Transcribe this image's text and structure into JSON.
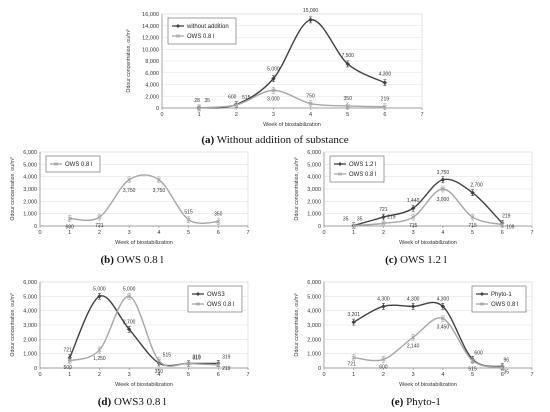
{
  "figure": {
    "captions": [
      {
        "tag": "(a)",
        "text": "Without addition of substance"
      },
      {
        "tag": "(b)",
        "text": "OWS 0.8 l"
      },
      {
        "tag": "(c)",
        "text": "OWS 1.2 l"
      },
      {
        "tag": "(d)",
        "text": "OWS3 0.8 l"
      },
      {
        "tag": "(e)",
        "text": "Phyto-1"
      }
    ]
  },
  "chart_data": [
    {
      "type": "line",
      "panel": "a",
      "xlabel": "Week of biostabilization",
      "ylabel": "Odour concentration, ou/m³",
      "xlim": [
        0,
        7
      ],
      "ylim": [
        0,
        16000
      ],
      "xticks": [
        "0",
        "1",
        "2",
        "3",
        "4",
        "5",
        "6",
        "7"
      ],
      "yticks": [
        "0",
        "2,000",
        "4,000",
        "6,000",
        "8,000",
        "10,000",
        "12,000",
        "14,000",
        "16,000"
      ],
      "legend_position": "top-left",
      "series": [
        {
          "name": "without addition",
          "color": "#404040",
          "marker": "diamond",
          "x": [
            1,
            2,
            3,
            4,
            5,
            6
          ],
          "y": [
            28,
            600,
            5000,
            15000,
            7500,
            4300
          ],
          "labels": [
            "28",
            "600",
            "5,000",
            "15,000",
            "7,500",
            "4,300"
          ]
        },
        {
          "name": "OWS 0.8 l",
          "color": "#a6a6a6",
          "marker": "x",
          "x": [
            1,
            2,
            3,
            4,
            5,
            6
          ],
          "y": [
            35,
            515,
            3000,
            750,
            350,
            219
          ],
          "labels": [
            "35",
            "515",
            "3,000",
            "750",
            "350",
            "219"
          ]
        }
      ]
    },
    {
      "type": "line",
      "panel": "b",
      "xlabel": "Week of biostabilization",
      "ylabel": "Odour concentration, ou/m³",
      "xlim": [
        0,
        7
      ],
      "ylim": [
        0,
        6000
      ],
      "xticks": [
        "0",
        "1",
        "2",
        "3",
        "4",
        "5",
        "6",
        "7"
      ],
      "yticks": [
        "0",
        "1,000",
        "2,000",
        "3,000",
        "4,000",
        "5,000",
        "6,000"
      ],
      "legend_position": "top-left",
      "series": [
        {
          "name": "OWS 0.8 l",
          "color": "#a6a6a6",
          "marker": "x",
          "x": [
            1,
            2,
            3,
            4,
            5,
            6
          ],
          "y": [
            600,
            721,
            3750,
            3750,
            515,
            350
          ],
          "labels": [
            "600",
            "721",
            "3,750",
            "3,750",
            "515",
            "350"
          ]
        }
      ]
    },
    {
      "type": "line",
      "panel": "c",
      "xlabel": "Week of biostabilization",
      "ylabel": "Odour concentration, ou/m³",
      "xlim": [
        0,
        7
      ],
      "ylim": [
        0,
        6000
      ],
      "xticks": [
        "0",
        "1",
        "2",
        "3",
        "4",
        "5",
        "6",
        "7"
      ],
      "yticks": [
        "0",
        "1,000",
        "2,000",
        "3,000",
        "4,000",
        "5,000",
        "6,000"
      ],
      "legend_position": "top-left",
      "series": [
        {
          "name": "OWS 1.2 l",
          "color": "#404040",
          "marker": "diamond",
          "x": [
            1,
            2,
            3,
            4,
            5,
            6
          ],
          "y": [
            35,
            721,
            1440,
            3750,
            2700,
            219
          ],
          "labels": [
            "35",
            "721",
            "1,440",
            "3,750",
            "2,700",
            "219"
          ]
        },
        {
          "name": "OWS 0.8 l",
          "color": "#a6a6a6",
          "marker": "x",
          "x": [
            1,
            2,
            3,
            4,
            5,
            6
          ],
          "y": [
            35,
            219,
            715,
            3000,
            715,
            109
          ],
          "labels": [
            "35",
            "219",
            "715",
            "3,000",
            "715",
            "109"
          ]
        }
      ]
    },
    {
      "type": "line",
      "panel": "d",
      "xlabel": "Week of biostabilization",
      "ylabel": "Odour concentration, ou/m³",
      "xlim": [
        0,
        7
      ],
      "ylim": [
        0,
        6000
      ],
      "xticks": [
        "0",
        "1",
        "2",
        "3",
        "4",
        "5",
        "6",
        "7"
      ],
      "yticks": [
        "0",
        "1,000",
        "2,000",
        "3,000",
        "4,000",
        "5,000",
        "6,000"
      ],
      "legend_position": "top-right",
      "series": [
        {
          "name": "OWS3",
          "color": "#404040",
          "marker": "diamond",
          "x": [
            1,
            2,
            3,
            4,
            5,
            6
          ],
          "y": [
            721,
            5000,
            2700,
            350,
            319,
            319
          ],
          "labels": [
            "721",
            "5,000",
            "2,700",
            "350",
            "319",
            "319"
          ]
        },
        {
          "name": "OWS 0.8 l",
          "color": "#a6a6a6",
          "marker": "x",
          "x": [
            1,
            2,
            3,
            4,
            5,
            6
          ],
          "y": [
            500,
            1250,
            5000,
            515,
            319,
            219
          ],
          "labels": [
            "500",
            "1,250",
            "5,000",
            "515",
            "319",
            "219"
          ]
        }
      ]
    },
    {
      "type": "line",
      "panel": "e",
      "xlabel": "Week of biostabilization",
      "ylabel": "Odour concentration, ou/m³",
      "xlim": [
        0,
        7
      ],
      "ylim": [
        0,
        6000
      ],
      "xticks": [
        "0",
        "1",
        "2",
        "3",
        "4",
        "5",
        "6",
        "7"
      ],
      "yticks": [
        "0",
        "1,000",
        "2,000",
        "3,000",
        "4,000",
        "5,000",
        "6,000"
      ],
      "legend_position": "top-right",
      "series": [
        {
          "name": "Phyto-1",
          "color": "#404040",
          "marker": "diamond",
          "x": [
            1,
            2,
            3,
            4,
            5,
            6
          ],
          "y": [
            3201,
            4300,
            4300,
            4300,
            600,
            96
          ],
          "labels": [
            "3,201",
            "4,300",
            "4,300",
            "4,300",
            "600",
            "96"
          ]
        },
        {
          "name": "OWS 0.8 l",
          "color": "#a6a6a6",
          "marker": "x",
          "x": [
            1,
            2,
            3,
            4,
            5,
            6
          ],
          "y": [
            721,
            600,
            2140,
            3450,
            515,
            35
          ],
          "labels": [
            "721",
            "600",
            "2,140",
            "3,450",
            "515",
            "35"
          ]
        }
      ]
    }
  ]
}
